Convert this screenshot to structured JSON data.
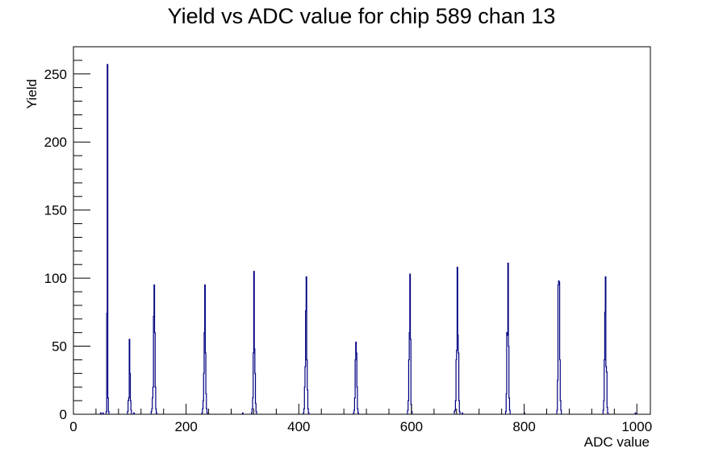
{
  "chart_data": {
    "type": "histogram",
    "title": "Yield vs ADC value for chip 589 chan 13",
    "xlabel": "ADC value",
    "ylabel": "Yield",
    "xlim": [
      0,
      1024
    ],
    "ylim": [
      0,
      270
    ],
    "x_ticks": [
      0,
      200,
      400,
      600,
      800,
      1000
    ],
    "y_ticks": [
      0,
      50,
      100,
      150,
      200,
      250
    ],
    "grid": false,
    "line_color": "#000080",
    "bins": [
      [
        48,
        1
      ],
      [
        52,
        1
      ],
      [
        58,
        2
      ],
      [
        59,
        74
      ],
      [
        60,
        257
      ],
      [
        61,
        12
      ],
      [
        62,
        2
      ],
      [
        96,
        2
      ],
      [
        97,
        10
      ],
      [
        98,
        12
      ],
      [
        99,
        55
      ],
      [
        100,
        30
      ],
      [
        101,
        10
      ],
      [
        102,
        3
      ],
      [
        107,
        1
      ],
      [
        138,
        2
      ],
      [
        139,
        4
      ],
      [
        140,
        12
      ],
      [
        141,
        20
      ],
      [
        142,
        72
      ],
      [
        143,
        95
      ],
      [
        144,
        60
      ],
      [
        145,
        20
      ],
      [
        146,
        4
      ],
      [
        147,
        1
      ],
      [
        228,
        1
      ],
      [
        229,
        4
      ],
      [
        230,
        10
      ],
      [
        231,
        30
      ],
      [
        232,
        60
      ],
      [
        233,
        95
      ],
      [
        234,
        45
      ],
      [
        235,
        15
      ],
      [
        236,
        4
      ],
      [
        237,
        1
      ],
      [
        300,
        1
      ],
      [
        316,
        1
      ],
      [
        317,
        4
      ],
      [
        318,
        12
      ],
      [
        319,
        45
      ],
      [
        320,
        105
      ],
      [
        321,
        48
      ],
      [
        322,
        30
      ],
      [
        323,
        8
      ],
      [
        324,
        2
      ],
      [
        408,
        1
      ],
      [
        409,
        4
      ],
      [
        410,
        20
      ],
      [
        411,
        35
      ],
      [
        412,
        76
      ],
      [
        413,
        101
      ],
      [
        414,
        40
      ],
      [
        415,
        18
      ],
      [
        416,
        4
      ],
      [
        417,
        1
      ],
      [
        497,
        1
      ],
      [
        498,
        3
      ],
      [
        499,
        12
      ],
      [
        500,
        40
      ],
      [
        501,
        53
      ],
      [
        502,
        45
      ],
      [
        503,
        20
      ],
      [
        504,
        4
      ],
      [
        505,
        1
      ],
      [
        593,
        3
      ],
      [
        594,
        10
      ],
      [
        595,
        40
      ],
      [
        596,
        60
      ],
      [
        597,
        103
      ],
      [
        598,
        55
      ],
      [
        599,
        7
      ],
      [
        600,
        2
      ],
      [
        676,
        2
      ],
      [
        677,
        3
      ],
      [
        678,
        10
      ],
      [
        679,
        40
      ],
      [
        680,
        47
      ],
      [
        681,
        108
      ],
      [
        682,
        58
      ],
      [
        683,
        45
      ],
      [
        684,
        10
      ],
      [
        685,
        2
      ],
      [
        690,
        1
      ],
      [
        767,
        2
      ],
      [
        768,
        15
      ],
      [
        769,
        60
      ],
      [
        770,
        58
      ],
      [
        771,
        111
      ],
      [
        772,
        50
      ],
      [
        773,
        12
      ],
      [
        774,
        3
      ],
      [
        800,
        1
      ],
      [
        858,
        3
      ],
      [
        859,
        25
      ],
      [
        860,
        95
      ],
      [
        861,
        98
      ],
      [
        862,
        97
      ],
      [
        863,
        40
      ],
      [
        864,
        10
      ],
      [
        865,
        3
      ],
      [
        940,
        3
      ],
      [
        941,
        10
      ],
      [
        942,
        40
      ],
      [
        943,
        75
      ],
      [
        944,
        101
      ],
      [
        945,
        35
      ],
      [
        946,
        31
      ],
      [
        947,
        5
      ],
      [
        948,
        1
      ],
      [
        997,
        1
      ]
    ]
  }
}
